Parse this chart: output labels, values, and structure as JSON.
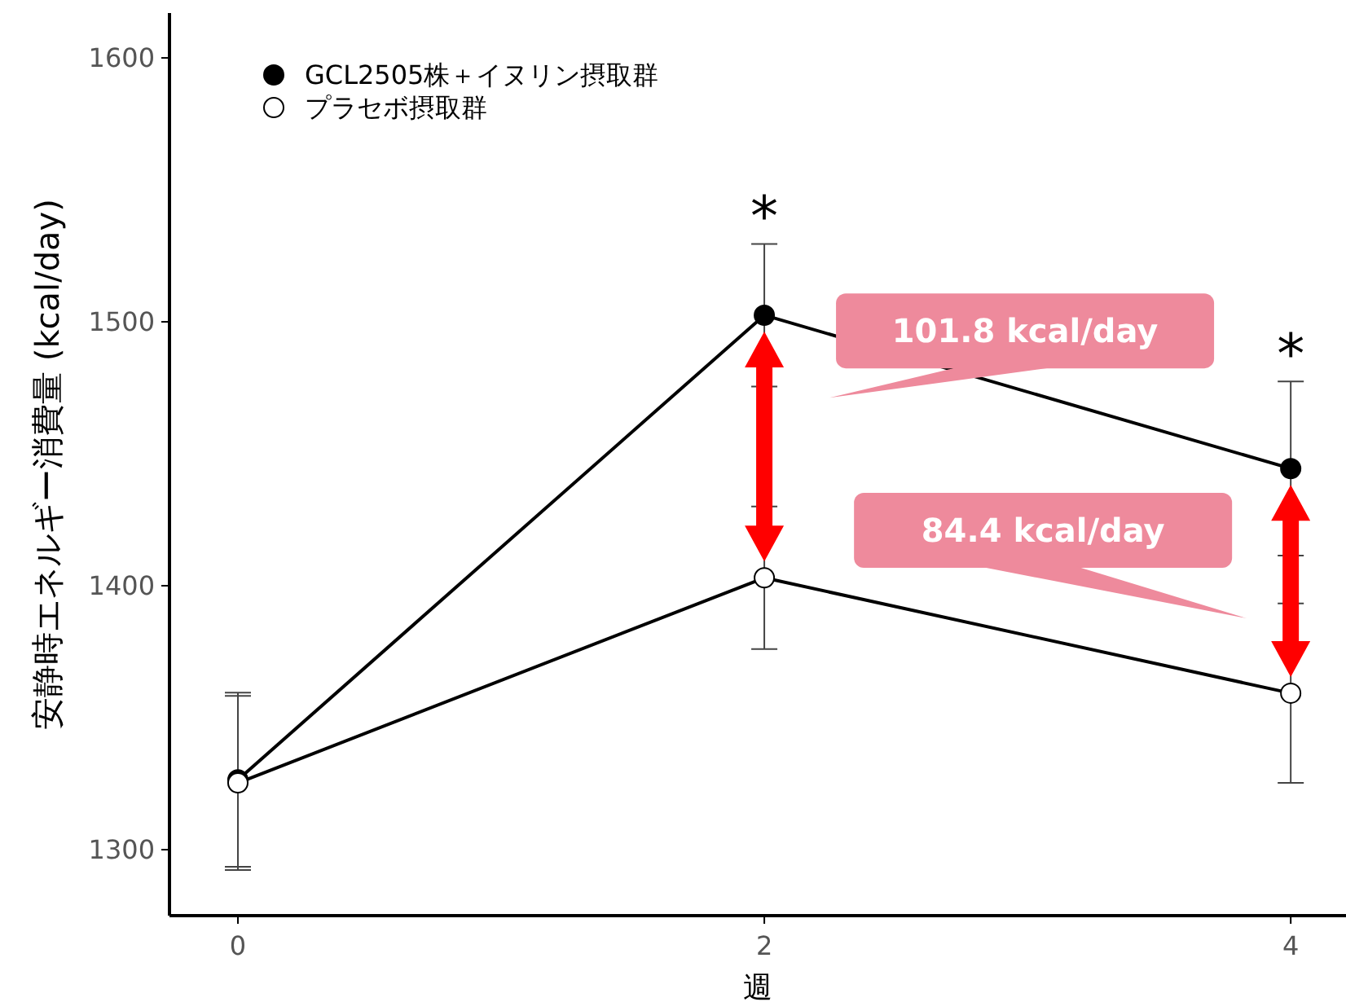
{
  "chart_data": {
    "type": "line",
    "xlabel": "週",
    "ylabel": "安静時エネルギー消費量 (kcal/day)",
    "x": [
      0,
      2,
      4
    ],
    "xlim": [
      -0.26,
      4.21
    ],
    "xticks": [
      0,
      2,
      4
    ],
    "ylim": [
      1275,
      1617
    ],
    "yticks": [
      1300,
      1400,
      1500,
      1600
    ],
    "series": [
      {
        "name": "GCL2505株＋イヌリン摂取群",
        "color": "#000000",
        "values": [
          1326.5,
          1502.5,
          1444.4
        ],
        "errors": [
          33,
          27,
          33
        ]
      },
      {
        "name": "プラセボ摂取群",
        "color": "#ffffff",
        "values": [
          1325.3,
          1403,
          1359.3
        ],
        "errors": [
          33,
          27,
          34
        ]
      }
    ],
    "annotations": [
      "*",
      "*",
      "101.8 kcal/day",
      "84.4 kcal/day"
    ],
    "marker": "circle",
    "legend": "top left",
    "grid": false
  }
}
